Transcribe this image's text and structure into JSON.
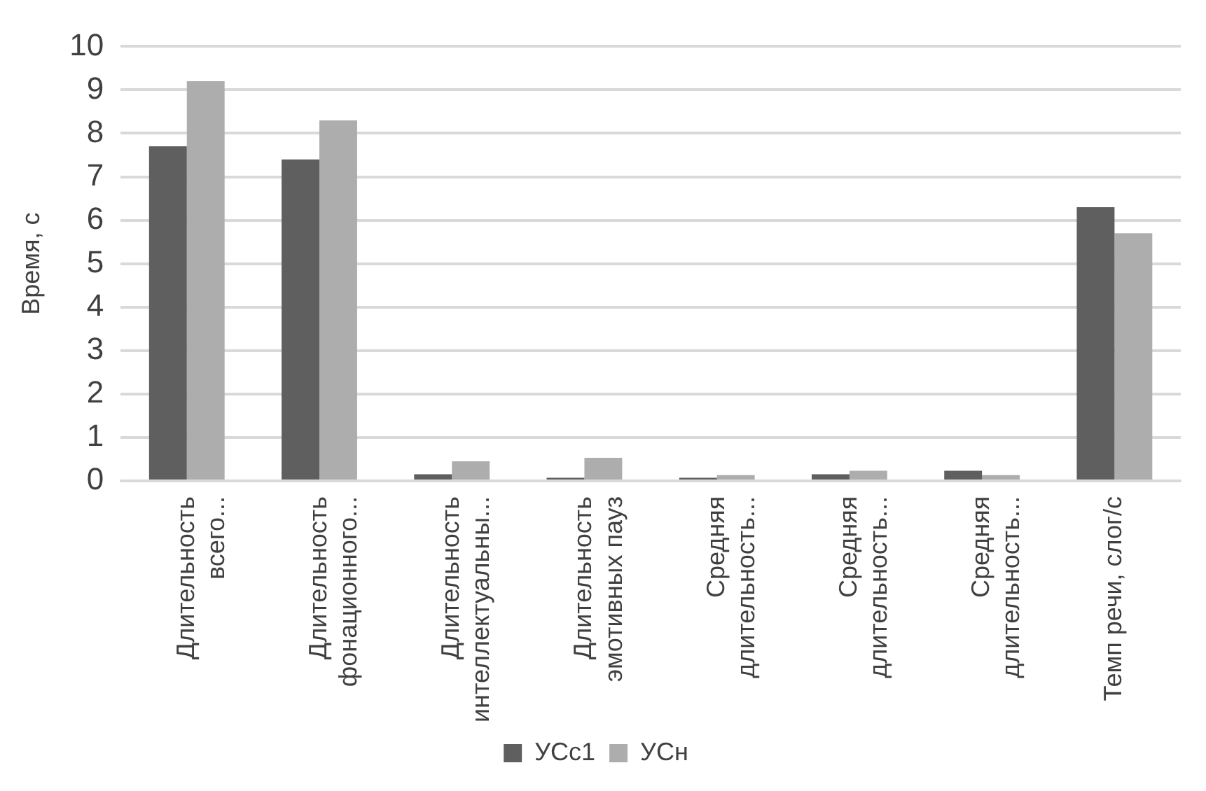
{
  "chart_data": {
    "type": "bar",
    "ylabel": "Время, с",
    "categories": [
      "Длительность всего...",
      "Длительность фонационного...",
      "Длительность интеллектуальны...",
      "Длительность эмотивных пауз",
      "Средняя длительность...",
      "Средняя длительность...",
      "Средняя длительность...",
      "Темп речи, слог/с"
    ],
    "series": [
      {
        "name": "УСс1",
        "color": "#5f5f5f",
        "values": [
          7.7,
          7.4,
          0.15,
          0.07,
          0.07,
          0.15,
          0.23,
          6.3
        ]
      },
      {
        "name": "УСн",
        "color": "#adadad",
        "values": [
          9.2,
          8.3,
          0.45,
          0.53,
          0.13,
          0.23,
          0.13,
          5.7
        ]
      }
    ],
    "ylim": [
      0,
      10
    ],
    "yticks": [
      0,
      1,
      2,
      3,
      4,
      5,
      6,
      7,
      8,
      9,
      10
    ],
    "grid": "y",
    "legend": "bottom"
  }
}
